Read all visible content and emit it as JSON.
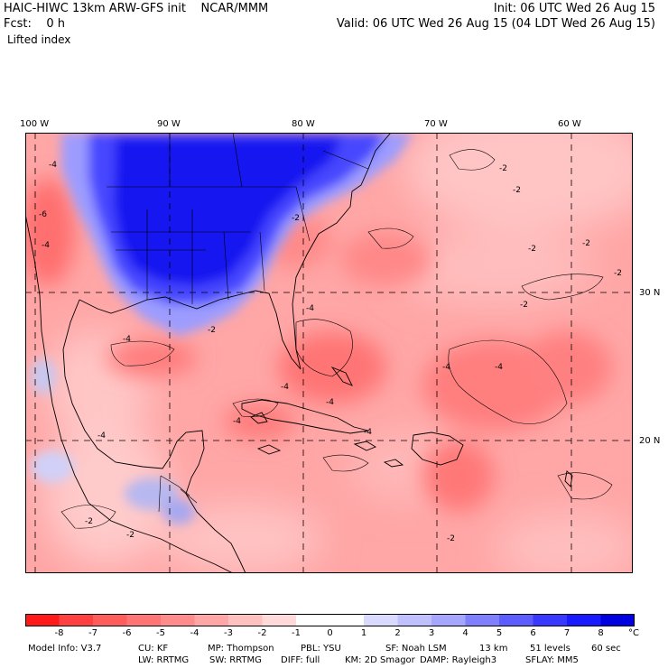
{
  "header": {
    "model": "HAIC-HIWC 13km ARW-GFS init",
    "org": "NCAR/MMM",
    "init": "Init: 06 UTC Wed 26 Aug 15",
    "fcst_label": "Fcst:",
    "fcst_value": "0 h",
    "valid": "Valid: 06 UTC Wed 26 Aug 15 (04 LDT Wed 26 Aug 15)",
    "field": "Lifted index"
  },
  "map": {
    "lon_labels": [
      "100 W",
      "90 W",
      "80 W",
      "70 W",
      "60 W"
    ],
    "lat_labels": [
      "30 N",
      "20 N"
    ],
    "contour_labels": [
      "-4",
      "-6",
      "-4",
      "-2",
      "-2",
      "-2",
      "-2",
      "-2",
      "-2",
      "-4",
      "-2",
      "-4",
      "-4",
      "-4",
      "-4",
      "-4",
      "-4",
      "-2",
      "-2",
      "-2",
      "-4",
      "-4",
      "-2"
    ]
  },
  "colorbar": {
    "labels": [
      "-8",
      "-7",
      "-6",
      "-5",
      "-4",
      "-3",
      "-2",
      "-1",
      "0",
      "1",
      "2",
      "3",
      "4",
      "5",
      "6",
      "7",
      "8"
    ],
    "unit": "°C",
    "colors": [
      "#ff1a1a",
      "#ff4040",
      "#ff5c5c",
      "#ff7474",
      "#ff8c8c",
      "#ffa6a6",
      "#ffc0c0",
      "#ffdada",
      "#ffffff",
      "#ffffff",
      "#dadaff",
      "#c0c0ff",
      "#a6a6ff",
      "#8080ff",
      "#5c5cff",
      "#3838ff",
      "#1a1aff",
      "#0000e0"
    ]
  },
  "model_info": {
    "line1": [
      "Model Info: V3.7",
      "CU: KF",
      "MP: Thompson",
      "PBL: YSU",
      "SF: Noah LSM",
      "13 km",
      "51 levels",
      "60 sec"
    ],
    "line2": [
      "LW: RRTMG",
      "SW: RRTMG",
      "DIFF: full",
      "KM: 2D Smagor",
      "DAMP: Rayleigh3",
      "SFLAY: MM5"
    ]
  }
}
